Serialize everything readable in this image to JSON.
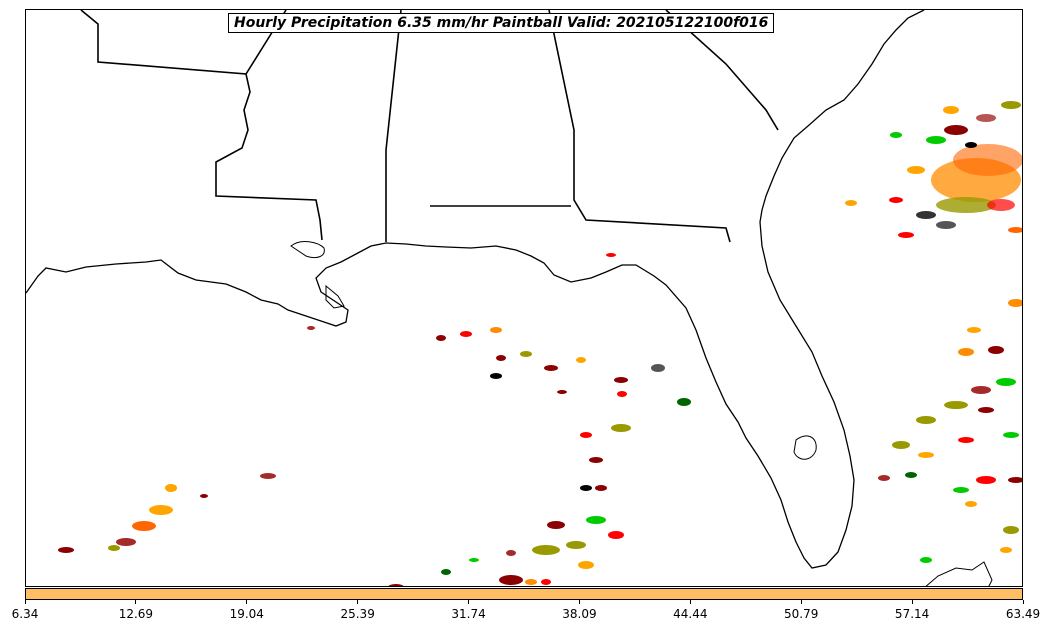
{
  "title": "Hourly Precipitation 6.35 mm/hr Paintball Valid: 202105122100f016",
  "colorbar": {
    "color": "#ffbe66",
    "ticks": [
      "6.34",
      "12.69",
      "19.04",
      "25.39",
      "31.74",
      "38.09",
      "44.44",
      "50.79",
      "57.14",
      "63.49"
    ]
  },
  "map": {
    "region": "US Gulf Coast and Southeast",
    "member_colors": [
      "#ff0000",
      "#8b0000",
      "#ff8c00",
      "#ffa500",
      "#00cc00",
      "#006400",
      "#999900",
      "#000000",
      "#a52a2a",
      "#ff6600",
      "#555555"
    ]
  }
}
